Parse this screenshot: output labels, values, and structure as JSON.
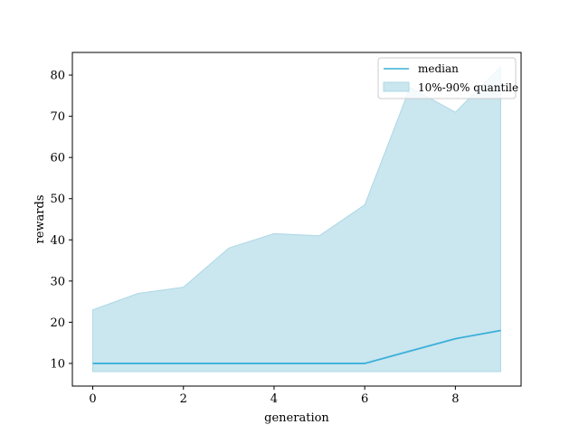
{
  "chart_data": {
    "type": "line",
    "title": "",
    "xlabel": "generation",
    "ylabel": "rewards",
    "x": [
      0,
      1,
      2,
      3,
      4,
      5,
      6,
      7,
      8,
      9
    ],
    "xlim": [
      -0.45,
      9.45
    ],
    "ylim": [
      4.5,
      85.5
    ],
    "xticks": [
      0,
      2,
      4,
      6,
      8
    ],
    "yticks": [
      10,
      20,
      30,
      40,
      50,
      60,
      70,
      80
    ],
    "grid": false,
    "legend_position": "top-right",
    "series": [
      {
        "name": "median",
        "kind": "line",
        "color": "#3aafd9",
        "values": [
          10,
          10,
          10,
          10,
          10,
          10,
          10,
          13,
          16,
          18
        ]
      },
      {
        "name": "10%-90% quantile",
        "kind": "band",
        "color": "#add8e6",
        "lower": [
          8,
          8,
          8,
          8,
          8,
          8,
          8,
          8,
          8,
          8
        ],
        "upper": [
          23,
          27,
          28.5,
          38,
          41.5,
          41,
          48.5,
          77,
          71,
          82
        ]
      }
    ]
  }
}
